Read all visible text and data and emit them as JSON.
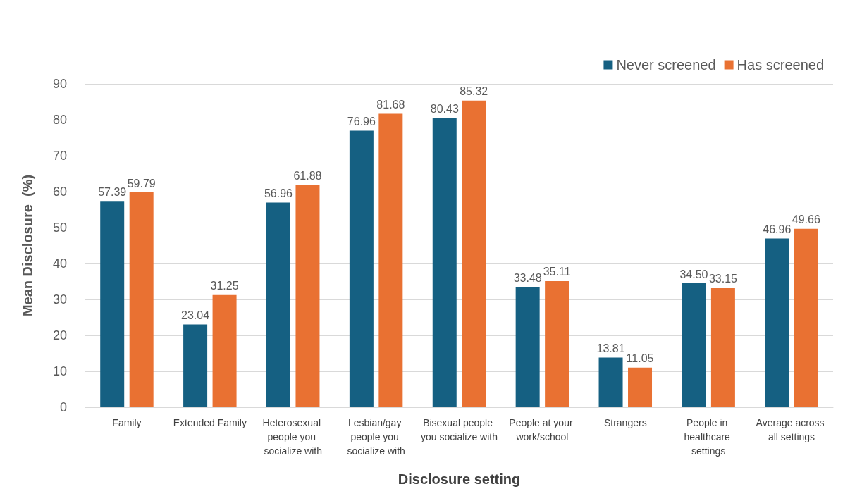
{
  "chart_data": {
    "type": "bar",
    "xlabel": "Disclosure setting",
    "ylabel": "Mean Disclosure  (%)",
    "categories": [
      "Family",
      "Extended Family",
      "Heterosexual people you socialize with",
      "Lesbian/gay people you socialize with",
      "Bisexual people you socialize with",
      "People at your work/school",
      "Strangers",
      "People in healthcare settings",
      "Average across all settings"
    ],
    "series": [
      {
        "name": "Never screened",
        "color": "#156082",
        "values": [
          57.39,
          23.04,
          56.96,
          76.96,
          80.43,
          33.48,
          13.81,
          34.5,
          46.96
        ],
        "value_labels": [
          "57.39",
          "23.04",
          "56.96",
          "76.96",
          "80.43",
          "33.48",
          "13.81",
          "34.50",
          "46.96"
        ]
      },
      {
        "name": "Has screened",
        "color": "#e97132",
        "values": [
          59.79,
          31.25,
          61.88,
          81.68,
          85.32,
          35.11,
          11.05,
          33.15,
          49.66
        ],
        "value_labels": [
          "59.79",
          "31.25",
          "61.88",
          "81.68",
          "85.32",
          "35.11",
          "11.05",
          "33.15",
          "49.66"
        ]
      }
    ],
    "ylim": [
      0,
      90
    ],
    "yticks": [
      0,
      10,
      20,
      30,
      40,
      50,
      60,
      70,
      80,
      90
    ],
    "grid": "y",
    "legend": "top right"
  }
}
